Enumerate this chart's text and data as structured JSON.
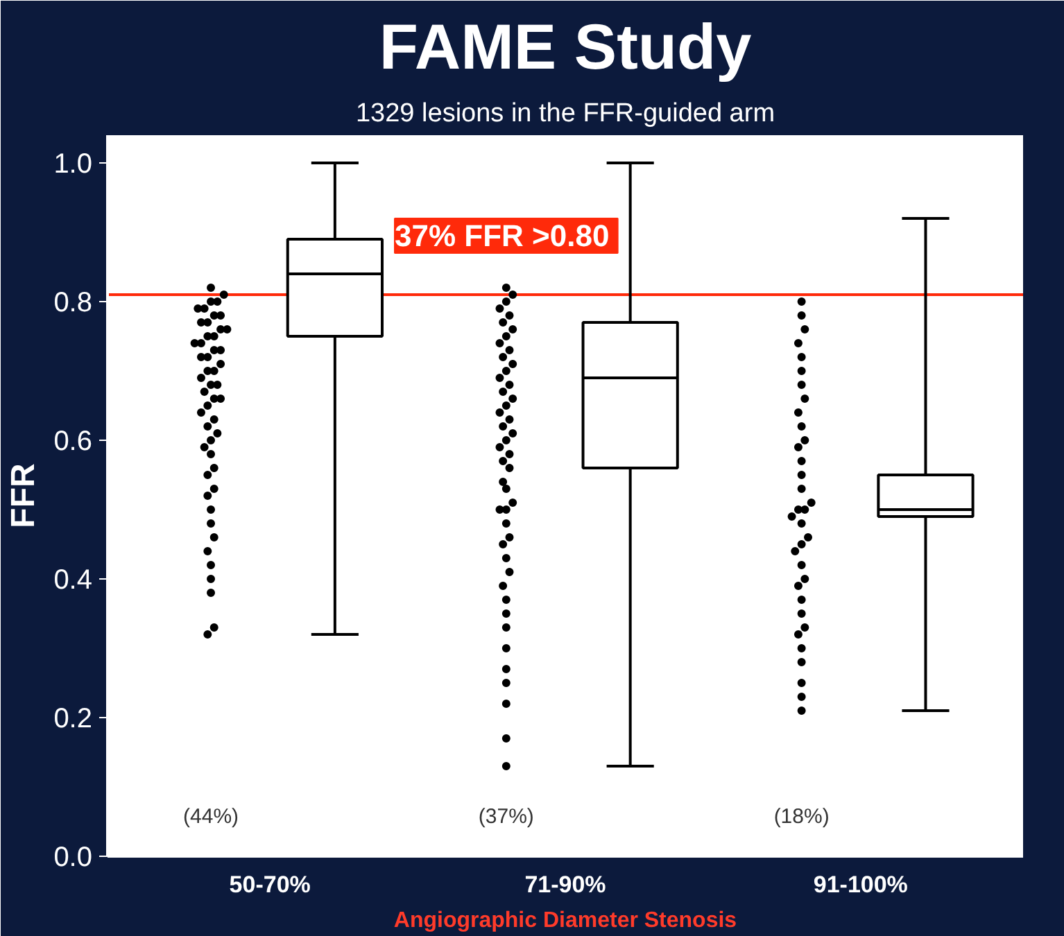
{
  "chart_data": {
    "type": "box",
    "title": "FAME Study",
    "subtitle": "1329 lesions in the FFR-guided arm",
    "ylabel": "FFR",
    "xlabel": "Angiographic Diameter Stenosis",
    "categories": [
      "50-70%",
      "71-90%",
      "91-100%"
    ],
    "boxes": [
      {
        "low": 0.32,
        "q1": 0.75,
        "median": 0.84,
        "q3": 0.89,
        "high": 1.0
      },
      {
        "low": 0.13,
        "q1": 0.56,
        "median": 0.69,
        "q3": 0.77,
        "high": 1.0
      },
      {
        "low": 0.21,
        "q1": 0.49,
        "median": 0.5,
        "q3": 0.55,
        "high": 0.92
      }
    ],
    "series": [
      {
        "type": "scatter",
        "color": "#000000",
        "x": [
          "50-70%",
          "50-70%",
          "50-70%",
          "50-70%",
          "50-70%",
          "50-70%",
          "50-70%",
          "50-70%",
          "50-70%",
          "50-70%",
          "50-70%",
          "50-70%",
          "50-70%",
          "50-70%",
          "50-70%",
          "50-70%",
          "50-70%",
          "50-70%",
          "50-70%",
          "50-70%",
          "50-70%",
          "50-70%",
          "50-70%",
          "50-70%",
          "50-70%",
          "50-70%",
          "50-70%",
          "50-70%",
          "50-70%",
          "50-70%",
          "50-70%",
          "50-70%",
          "50-70%",
          "50-70%",
          "50-70%",
          "50-70%",
          "50-70%",
          "50-70%",
          "50-70%",
          "50-70%",
          "50-70%",
          "50-70%",
          "50-70%",
          "50-70%",
          "50-70%",
          "50-70%",
          "50-70%",
          "50-70%",
          "50-70%",
          "50-70%"
        ],
        "values": [
          0.32,
          0.33,
          0.38,
          0.4,
          0.42,
          0.44,
          0.46,
          0.48,
          0.5,
          0.52,
          0.53,
          0.55,
          0.56,
          0.58,
          0.59,
          0.6,
          0.61,
          0.62,
          0.63,
          0.64,
          0.65,
          0.66,
          0.66,
          0.67,
          0.68,
          0.68,
          0.69,
          0.7,
          0.7,
          0.71,
          0.72,
          0.72,
          0.73,
          0.73,
          0.74,
          0.74,
          0.75,
          0.75,
          0.76,
          0.76,
          0.77,
          0.77,
          0.78,
          0.78,
          0.79,
          0.79,
          0.8,
          0.8,
          0.81,
          0.82
        ]
      },
      {
        "type": "scatter",
        "color": "#000000",
        "x": [
          "71-90%",
          "71-90%",
          "71-90%",
          "71-90%",
          "71-90%",
          "71-90%",
          "71-90%",
          "71-90%",
          "71-90%",
          "71-90%",
          "71-90%",
          "71-90%",
          "71-90%",
          "71-90%",
          "71-90%",
          "71-90%",
          "71-90%",
          "71-90%",
          "71-90%",
          "71-90%",
          "71-90%",
          "71-90%",
          "71-90%",
          "71-90%",
          "71-90%",
          "71-90%",
          "71-90%",
          "71-90%",
          "71-90%",
          "71-90%",
          "71-90%",
          "71-90%",
          "71-90%",
          "71-90%",
          "71-90%",
          "71-90%",
          "71-90%",
          "71-90%",
          "71-90%",
          "71-90%",
          "71-90%",
          "71-90%",
          "71-90%",
          "71-90%",
          "71-90%",
          "71-90%",
          "71-90%"
        ],
        "values": [
          0.13,
          0.17,
          0.22,
          0.25,
          0.27,
          0.3,
          0.33,
          0.35,
          0.37,
          0.39,
          0.41,
          0.43,
          0.45,
          0.46,
          0.48,
          0.5,
          0.5,
          0.51,
          0.53,
          0.54,
          0.56,
          0.57,
          0.58,
          0.59,
          0.6,
          0.61,
          0.62,
          0.63,
          0.64,
          0.65,
          0.66,
          0.67,
          0.68,
          0.69,
          0.7,
          0.71,
          0.72,
          0.73,
          0.74,
          0.75,
          0.76,
          0.77,
          0.78,
          0.79,
          0.8,
          0.81,
          0.82
        ]
      },
      {
        "type": "scatter",
        "color": "#000000",
        "x": [
          "91-100%",
          "91-100%",
          "91-100%",
          "91-100%",
          "91-100%",
          "91-100%",
          "91-100%",
          "91-100%",
          "91-100%",
          "91-100%",
          "91-100%",
          "91-100%",
          "91-100%",
          "91-100%",
          "91-100%",
          "91-100%",
          "91-100%",
          "91-100%",
          "91-100%",
          "91-100%",
          "91-100%",
          "91-100%",
          "91-100%",
          "91-100%",
          "91-100%",
          "91-100%",
          "91-100%",
          "91-100%",
          "91-100%",
          "91-100%",
          "91-100%",
          "91-100%",
          "91-100%",
          "91-100%",
          "91-100%"
        ],
        "values": [
          0.21,
          0.23,
          0.25,
          0.28,
          0.3,
          0.32,
          0.33,
          0.35,
          0.37,
          0.39,
          0.4,
          0.42,
          0.44,
          0.45,
          0.46,
          0.48,
          0.49,
          0.5,
          0.5,
          0.51,
          0.53,
          0.55,
          0.57,
          0.59,
          0.6,
          0.62,
          0.64,
          0.66,
          0.68,
          0.7,
          0.72,
          0.74,
          0.76,
          0.78,
          0.8
        ]
      }
    ],
    "ylim": [
      0,
      1.04
    ],
    "yticks": [
      {
        "value": 0,
        "label": "0.0"
      },
      0.2,
      0.4,
      0.6,
      0.8,
      {
        "value": 1,
        "label": "1.0"
      }
    ],
    "ref_lines": [
      {
        "axis": "y",
        "value": 0.81,
        "label": "37%  FFR >0.80",
        "color": "#ff2a0a"
      }
    ],
    "annotations": [
      "(44%)",
      "(37%)",
      "(18%)"
    ],
    "marker": "circle",
    "grid": false
  }
}
